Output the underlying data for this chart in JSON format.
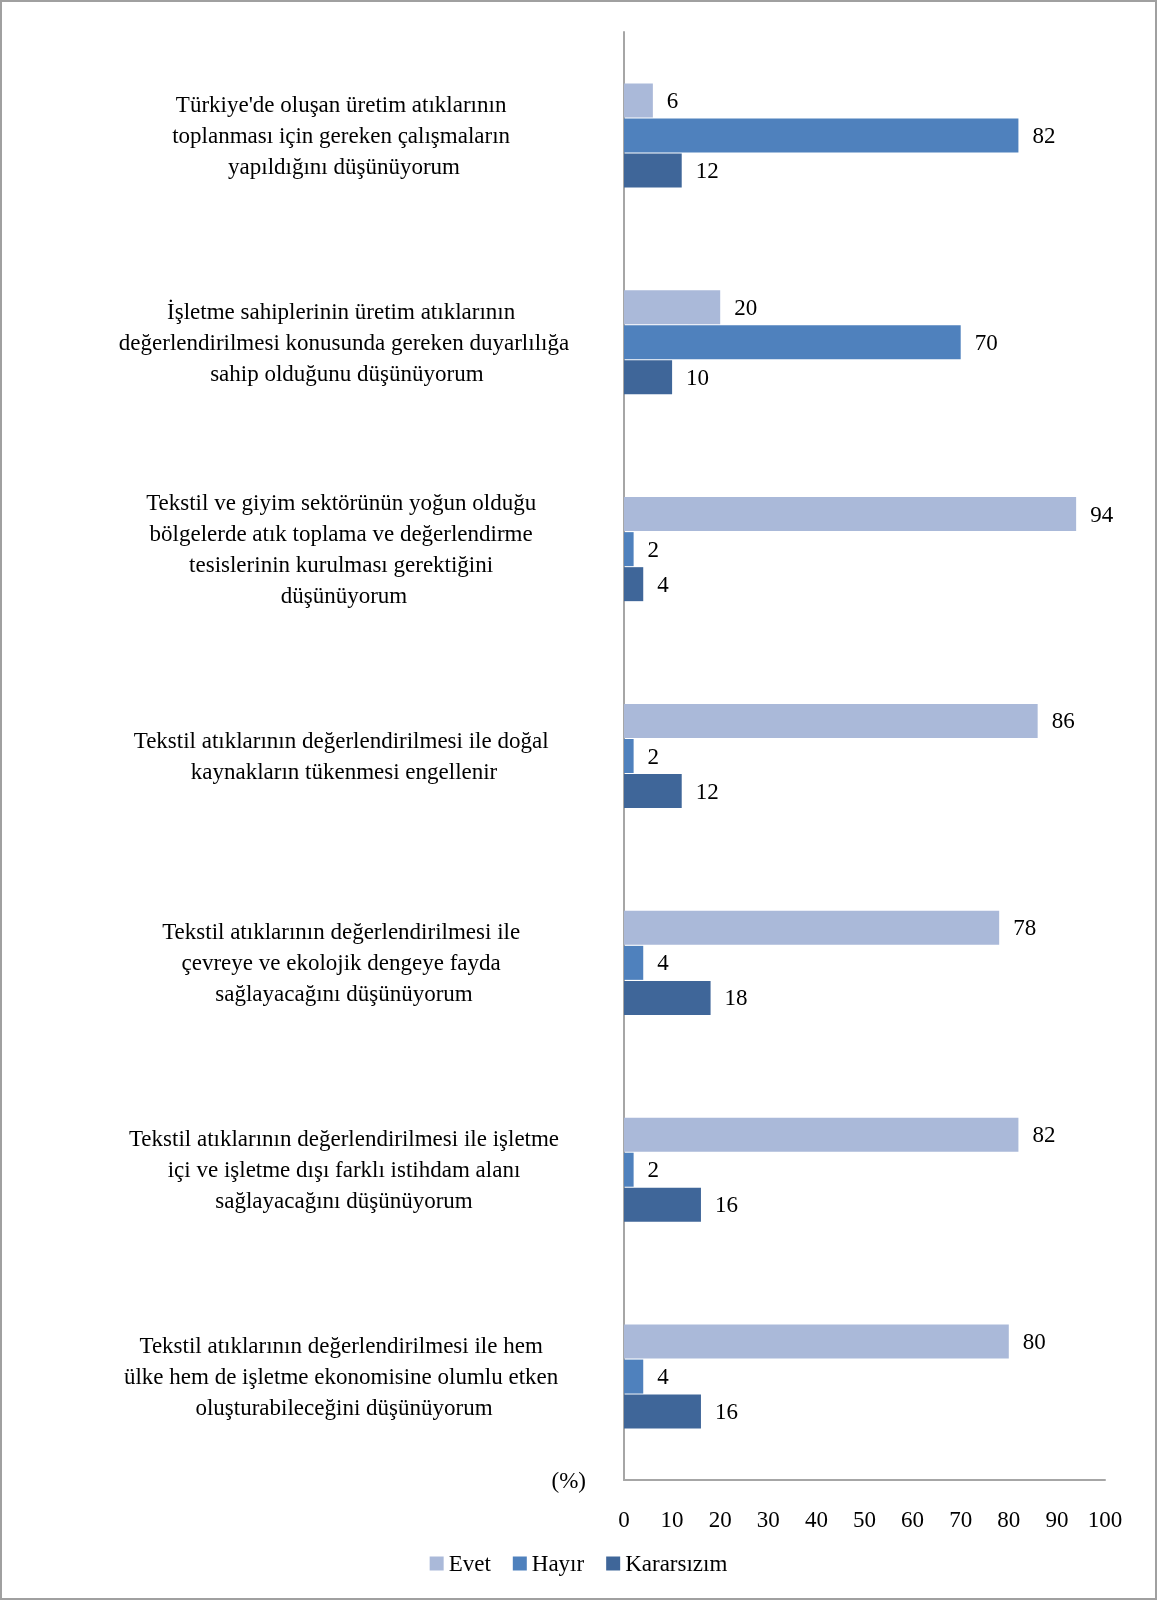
{
  "chart_data": {
    "type": "bar",
    "orientation": "horizontal",
    "xlabel": "(%)",
    "categories": [
      "Türkiye'de oluşan üretim atıklarının toplanması için gereken çalışmaların yapıldığını düşünüyorum",
      "İşletme sahiplerinin üretim atıklarının değerlendirilmesi konusunda gereken duyarlılığa sahip olduğunu düşünüyorum",
      "Tekstil ve giyim sektörünün yoğun olduğu bölgelerde atık toplama ve değerlendirme tesislerinin kurulması gerektiğini düşünüyorum",
      "Tekstil atıklarının değerlendirilmesi ile doğal kaynakların tükenmesi engellenir",
      "Tekstil atıklarının değerlendirilmesi ile çevreye ve ekolojik dengeye fayda sağlayacağını düşünüyorum",
      "Tekstil atıklarının değerlendirilmesi ile işletme içi ve işletme dışı farklı istihdam alanı sağlayacağını düşünüyorum",
      "Tekstil atıklarının değerlendirilmesi ile hem ülke hem de işletme ekonomisine olumlu etken oluşturabileceğini düşünüyorum"
    ],
    "series": [
      {
        "name": "Evet",
        "color": "#aab9d9",
        "values": [
          6,
          20,
          94,
          86,
          78,
          82,
          80
        ]
      },
      {
        "name": "Hayır",
        "color": "#4f81bd",
        "values": [
          82,
          70,
          2,
          2,
          4,
          2,
          4
        ]
      },
      {
        "name": "Kararsızım",
        "color": "#3f6699",
        "values": [
          12,
          10,
          4,
          12,
          18,
          16,
          16
        ]
      }
    ],
    "xlim": [
      0,
      100
    ],
    "xticks": [
      0,
      10,
      20,
      30,
      40,
      50,
      60,
      70,
      80,
      90,
      100
    ],
    "data_labels": true,
    "grid": false,
    "legend": "bottom"
  }
}
